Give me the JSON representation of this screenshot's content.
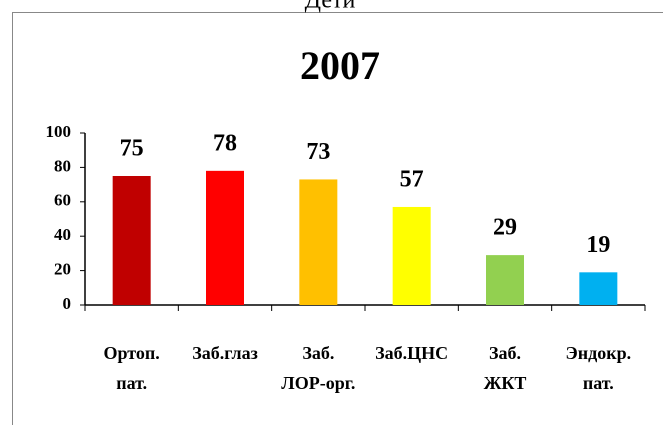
{
  "chart_data": {
    "type": "bar",
    "caption": "Дети",
    "title": "2007",
    "categories": [
      "Ортоп.\nпат.",
      "Заб.глаз",
      "Заб.\nЛОР-орг.",
      "Заб.ЦНС",
      "Заб.\nЖКТ",
      "Эндокр.\nпат."
    ],
    "values": [
      75,
      78,
      73,
      57,
      29,
      19
    ],
    "colors": [
      "#c00000",
      "#ff0000",
      "#ffc000",
      "#ffff00",
      "#92d050",
      "#00b0f0"
    ],
    "ylim": [
      0,
      100
    ],
    "yticks": [
      0,
      20,
      40,
      60,
      80,
      100
    ],
    "grid": false
  }
}
